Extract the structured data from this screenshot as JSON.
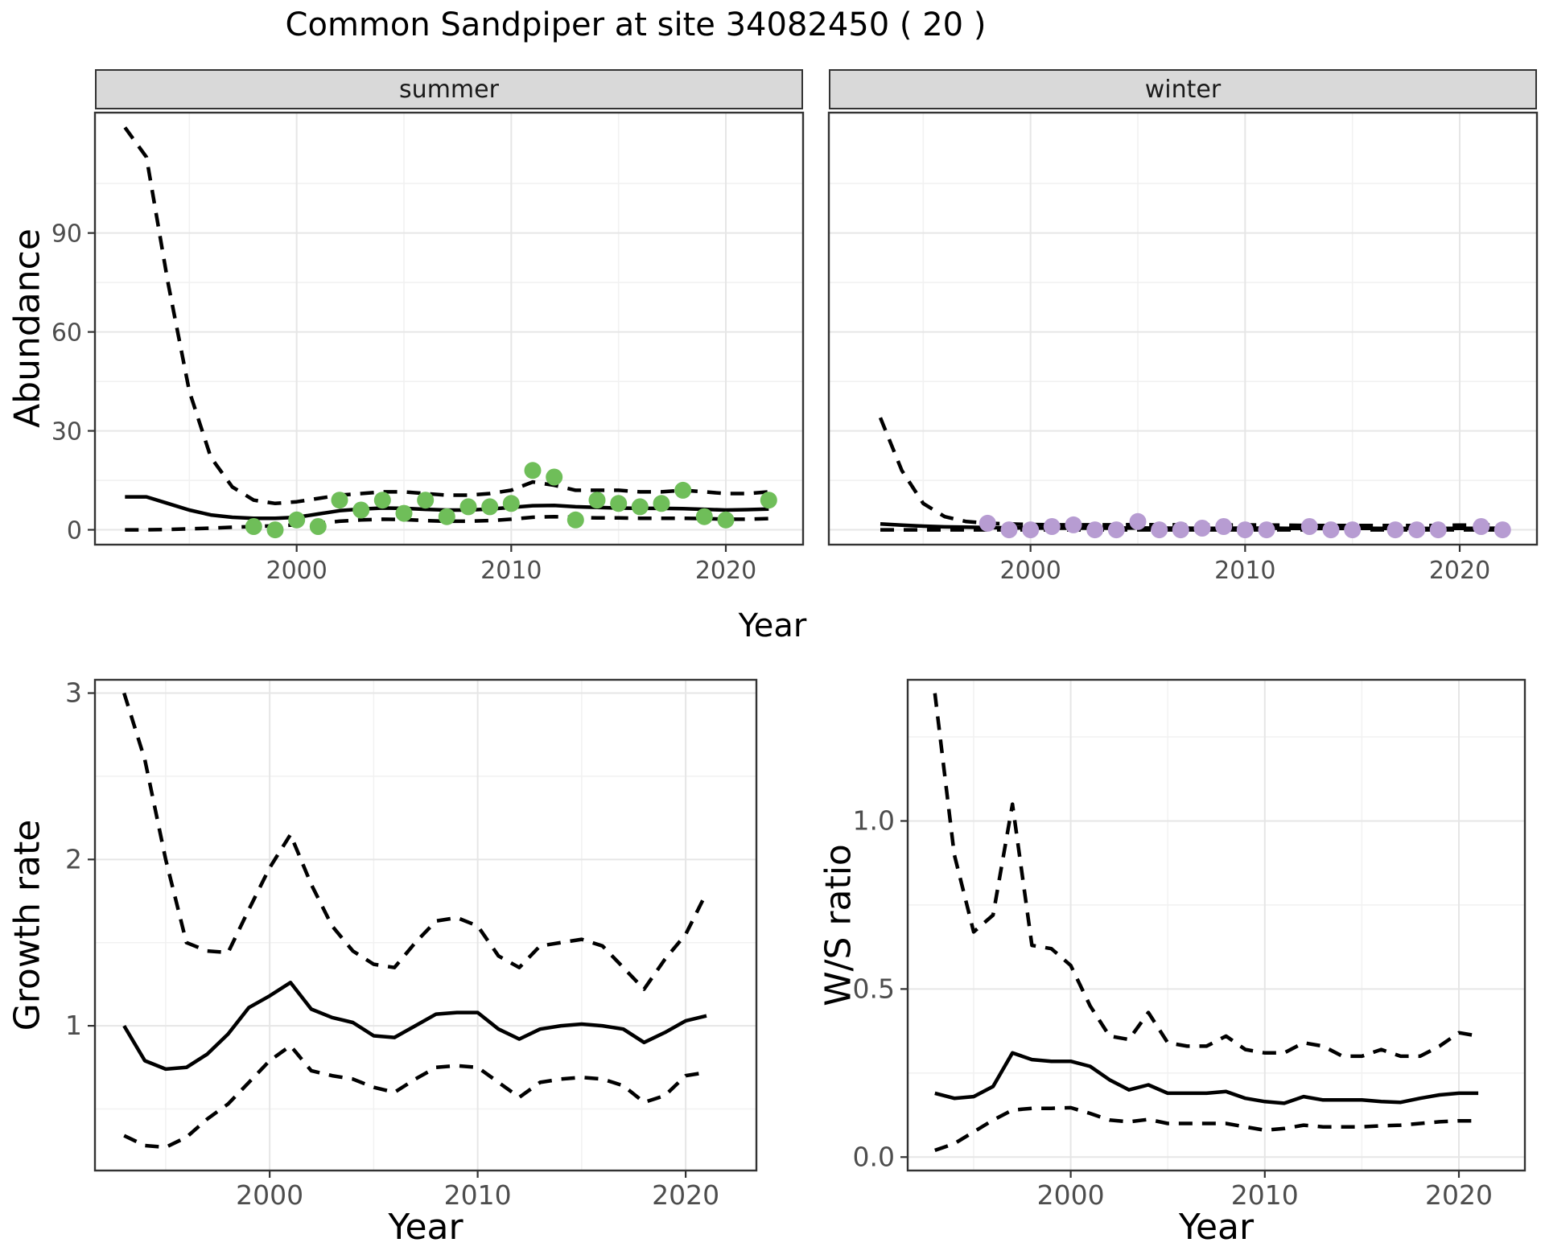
{
  "title": "Common Sandpiper at site 34082450 ( 20 )",
  "axis_titles": {
    "x": "Year",
    "y_abundance": "Abundance",
    "y_growth": "Growth rate",
    "y_ws": "W/S ratio"
  },
  "colors": {
    "summer_point": "#6FBE59",
    "winter_point": "#B79CD2",
    "strip_bg": "#D9D9D9",
    "panel_border": "#333333",
    "grid_major": "#E6E6E6",
    "grid_minor": "#F1F1F1",
    "line": "#000000",
    "tick_text": "#4D4D4D",
    "title_text": "#000000"
  },
  "chart_data": [
    {
      "id": "abundance-summer",
      "type": "line+scatter",
      "facet_label": "summer",
      "ylabel": "Abundance",
      "xlabel": "Year",
      "xlim": [
        1990.6,
        2023.6
      ],
      "ylim": [
        -4.5,
        126.5
      ],
      "xticks": {
        "values": [
          2000,
          2010,
          2020
        ],
        "labels": [
          "2000",
          "2010",
          "2020"
        ]
      },
      "yticks": {
        "values": [
          0,
          30,
          60,
          90
        ],
        "labels": [
          "0",
          "30",
          "60",
          "90"
        ]
      },
      "xminor": [
        1995,
        2005,
        2015
      ],
      "yminor": [
        15,
        45,
        75,
        105
      ],
      "show_y_labels": true,
      "lines": [
        {
          "name": "upper_95ci",
          "dash": true,
          "x": [
            1992,
            1993,
            1994,
            1995,
            1996,
            1997,
            1998,
            1999,
            2000,
            2001,
            2002,
            2003,
            2004,
            2005,
            2006,
            2007,
            2008,
            2009,
            2010,
            2011,
            2012,
            2013,
            2014,
            2015,
            2016,
            2017,
            2018,
            2019,
            2020,
            2021,
            2022
          ],
          "y": [
            122,
            113,
            75,
            42,
            22,
            13,
            9,
            8,
            8.5,
            9.5,
            10.5,
            11,
            11.5,
            11.5,
            11,
            10.5,
            10.5,
            11,
            12,
            14.5,
            13.5,
            12,
            12,
            12,
            11.5,
            11.5,
            12,
            11.5,
            11,
            11,
            11.5
          ]
        },
        {
          "name": "median",
          "dash": false,
          "x": [
            1992,
            1993,
            1994,
            1995,
            1996,
            1997,
            1998,
            1999,
            2000,
            2001,
            2002,
            2003,
            2004,
            2005,
            2006,
            2007,
            2008,
            2009,
            2010,
            2011,
            2012,
            2013,
            2014,
            2015,
            2016,
            2017,
            2018,
            2019,
            2020,
            2021,
            2022
          ],
          "y": [
            10,
            10,
            8,
            6,
            4.5,
            3.8,
            3.5,
            3.5,
            3.8,
            4.8,
            5.8,
            6.3,
            6.6,
            6.5,
            6.2,
            6,
            6,
            6.3,
            6.8,
            7.3,
            7.4,
            7,
            6.8,
            6.6,
            6.5,
            6.5,
            6.4,
            6.2,
            6,
            6.1,
            6.3
          ]
        },
        {
          "name": "lower_95ci",
          "dash": true,
          "x": [
            1992,
            1993,
            1994,
            1995,
            1996,
            1997,
            1998,
            1999,
            2000,
            2001,
            2002,
            2003,
            2004,
            2005,
            2006,
            2007,
            2008,
            2009,
            2010,
            2011,
            2012,
            2013,
            2014,
            2015,
            2016,
            2017,
            2018,
            2019,
            2020,
            2021,
            2022
          ],
          "y": [
            0,
            0,
            0.1,
            0.3,
            0.5,
            0.8,
            1,
            1.2,
            1.5,
            2,
            2.6,
            3,
            3.2,
            3.1,
            2.8,
            2.6,
            2.6,
            2.8,
            3.2,
            3.8,
            4,
            3.8,
            3.6,
            3.6,
            3.5,
            3.5,
            3.5,
            3.4,
            3.2,
            3.2,
            3.4
          ]
        }
      ],
      "points": {
        "color_key": "summer_point",
        "x": [
          1998,
          1999,
          2000,
          2001,
          2002,
          2003,
          2004,
          2005,
          2006,
          2007,
          2008,
          2009,
          2010,
          2011,
          2012,
          2013,
          2014,
          2015,
          2016,
          2017,
          2018,
          2019,
          2020,
          2022
        ],
        "y": [
          1,
          0,
          3,
          1,
          9,
          6,
          9,
          5,
          9,
          4,
          7,
          7,
          8,
          18,
          16,
          3,
          9,
          8,
          7,
          8,
          12,
          4,
          3,
          9
        ]
      }
    },
    {
      "id": "abundance-winter",
      "type": "line+scatter",
      "facet_label": "winter",
      "ylabel": "Abundance",
      "xlabel": "Year",
      "xlim": [
        1990.6,
        2023.6
      ],
      "ylim": [
        -4.5,
        126.5
      ],
      "xticks": {
        "values": [
          2000,
          2010,
          2020
        ],
        "labels": [
          "2000",
          "2010",
          "2020"
        ]
      },
      "yticks": {
        "values": [
          0,
          30,
          60,
          90
        ],
        "labels": [
          "0",
          "30",
          "60",
          "90"
        ]
      },
      "xminor": [
        1995,
        2005,
        2015
      ],
      "yminor": [
        15,
        45,
        75,
        105
      ],
      "show_y_labels": false,
      "lines": [
        {
          "name": "upper_95ci",
          "dash": true,
          "x": [
            1993,
            1994,
            1995,
            1996,
            1997,
            1998,
            1999,
            2000,
            2001,
            2002,
            2003,
            2004,
            2005,
            2006,
            2007,
            2008,
            2009,
            2010,
            2011,
            2012,
            2013,
            2014,
            2015,
            2016,
            2017,
            2018,
            2019,
            2020,
            2021,
            2022
          ],
          "y": [
            34,
            18,
            8,
            4,
            2.5,
            2,
            1.8,
            1.6,
            1.5,
            1.5,
            1.5,
            1.5,
            1.6,
            1.5,
            1.5,
            1.4,
            1.4,
            1.5,
            1.4,
            1.4,
            1.3,
            1.3,
            1.3,
            1.3,
            1.3,
            1.3,
            1.3,
            1.4,
            1.4,
            1.5
          ]
        },
        {
          "name": "median",
          "dash": false,
          "x": [
            1993,
            1994,
            1995,
            1996,
            1997,
            1998,
            1999,
            2000,
            2001,
            2002,
            2003,
            2004,
            2005,
            2006,
            2007,
            2008,
            2009,
            2010,
            2011,
            2012,
            2013,
            2014,
            2015,
            2016,
            2017,
            2018,
            2019,
            2020,
            2021,
            2022
          ],
          "y": [
            1.8,
            1.4,
            1.1,
            0.9,
            0.8,
            0.7,
            0.6,
            0.55,
            0.5,
            0.5,
            0.5,
            0.5,
            0.55,
            0.5,
            0.5,
            0.45,
            0.45,
            0.5,
            0.5,
            0.45,
            0.4,
            0.4,
            0.45,
            0.45,
            0.4,
            0.4,
            0.4,
            0.45,
            0.45,
            0.5
          ]
        },
        {
          "name": "lower_95ci",
          "dash": true,
          "x": [
            1993,
            1994,
            1995,
            1996,
            1997,
            1998,
            1999,
            2000,
            2001,
            2002,
            2003,
            2004,
            2005,
            2006,
            2007,
            2008,
            2009,
            2010,
            2011,
            2012,
            2013,
            2014,
            2015,
            2016,
            2017,
            2018,
            2019,
            2020,
            2021,
            2022
          ],
          "y": [
            0,
            0,
            0,
            0,
            0,
            0,
            0,
            0,
            0,
            0,
            0,
            0,
            0,
            0,
            0,
            0,
            0,
            0,
            0,
            0,
            0,
            0,
            0,
            0,
            0,
            0,
            0,
            0,
            0,
            0
          ]
        }
      ],
      "points": {
        "color_key": "winter_point",
        "x": [
          1998,
          1999,
          2000,
          2001,
          2002,
          2003,
          2004,
          2005,
          2006,
          2007,
          2008,
          2009,
          2010,
          2011,
          2013,
          2014,
          2015,
          2017,
          2018,
          2019,
          2021,
          2022
        ],
        "y": [
          2,
          0,
          0,
          1,
          1.5,
          0,
          0,
          2.5,
          0,
          0,
          0.5,
          1,
          0,
          0,
          1,
          0,
          0,
          0,
          0,
          0,
          1,
          0
        ]
      }
    },
    {
      "id": "growth-rate",
      "type": "line",
      "facet_label": "",
      "ylabel": "Growth rate",
      "xlabel": "Year",
      "xlim": [
        1991.6,
        2023.4
      ],
      "ylim": [
        0.13,
        3.08
      ],
      "xticks": {
        "values": [
          2000,
          2010,
          2020
        ],
        "labels": [
          "2000",
          "2010",
          "2020"
        ]
      },
      "yticks": {
        "values": [
          1,
          2,
          3
        ],
        "labels": [
          "1",
          "2",
          "3"
        ]
      },
      "xminor": [
        1995,
        2005,
        2015
      ],
      "yminor": [
        0.5,
        1.5,
        2.5
      ],
      "show_y_labels": true,
      "lines": [
        {
          "name": "upper_95ci",
          "dash": true,
          "x": [
            1993,
            1994,
            1995,
            1996,
            1997,
            1998,
            1999,
            2000,
            2001,
            2002,
            2003,
            2004,
            2005,
            2006,
            2007,
            2008,
            2009,
            2010,
            2011,
            2012,
            2013,
            2014,
            2015,
            2016,
            2017,
            2018,
            2019,
            2020,
            2021
          ],
          "y": [
            3.0,
            2.6,
            2.0,
            1.5,
            1.45,
            1.44,
            1.7,
            1.95,
            2.15,
            1.85,
            1.6,
            1.45,
            1.37,
            1.35,
            1.5,
            1.63,
            1.65,
            1.6,
            1.42,
            1.35,
            1.48,
            1.5,
            1.52,
            1.48,
            1.35,
            1.22,
            1.4,
            1.55,
            1.8
          ]
        },
        {
          "name": "median",
          "dash": false,
          "x": [
            1993,
            1994,
            1995,
            1996,
            1997,
            1998,
            1999,
            2000,
            2001,
            2002,
            2003,
            2004,
            2005,
            2006,
            2007,
            2008,
            2009,
            2010,
            2011,
            2012,
            2013,
            2014,
            2015,
            2016,
            2017,
            2018,
            2019,
            2020,
            2021
          ],
          "y": [
            1.0,
            0.79,
            0.74,
            0.75,
            0.83,
            0.95,
            1.11,
            1.18,
            1.26,
            1.1,
            1.05,
            1.02,
            0.94,
            0.93,
            1.0,
            1.07,
            1.08,
            1.08,
            0.98,
            0.92,
            0.98,
            1.0,
            1.01,
            1.0,
            0.98,
            0.9,
            0.96,
            1.03,
            1.06
          ]
        },
        {
          "name": "lower_95ci",
          "dash": true,
          "x": [
            1993,
            1994,
            1995,
            1996,
            1997,
            1998,
            1999,
            2000,
            2001,
            2002,
            2003,
            2004,
            2005,
            2006,
            2007,
            2008,
            2009,
            2010,
            2011,
            2012,
            2013,
            2014,
            2015,
            2016,
            2017,
            2018,
            2019,
            2020,
            2021
          ],
          "y": [
            0.34,
            0.28,
            0.27,
            0.33,
            0.44,
            0.53,
            0.66,
            0.79,
            0.88,
            0.73,
            0.7,
            0.68,
            0.63,
            0.6,
            0.68,
            0.75,
            0.76,
            0.75,
            0.66,
            0.57,
            0.66,
            0.68,
            0.69,
            0.68,
            0.64,
            0.54,
            0.58,
            0.7,
            0.72
          ]
        }
      ],
      "points": null
    },
    {
      "id": "ws-ratio",
      "type": "line",
      "facet_label": "",
      "ylabel": "W/S ratio",
      "xlabel": "Year",
      "xlim": [
        1991.6,
        2023.4
      ],
      "ylim": [
        -0.04,
        1.42
      ],
      "xticks": {
        "values": [
          2000,
          2010,
          2020
        ],
        "labels": [
          "2000",
          "2010",
          "2020"
        ]
      },
      "yticks": {
        "values": [
          0,
          0.5,
          1
        ],
        "labels": [
          "0.0",
          "0.5",
          "1.0"
        ]
      },
      "xminor": [
        1995,
        2005,
        2015
      ],
      "yminor": [
        0.25,
        0.75,
        1.25
      ],
      "show_y_labels": true,
      "lines": [
        {
          "name": "upper_95ci",
          "dash": true,
          "x": [
            1993,
            1994,
            1995,
            1996,
            1997,
            1998,
            1999,
            2000,
            2001,
            2002,
            2003,
            2004,
            2005,
            2006,
            2007,
            2008,
            2009,
            2010,
            2011,
            2012,
            2013,
            2014,
            2015,
            2016,
            2017,
            2018,
            2019,
            2020,
            2021
          ],
          "y": [
            1.38,
            0.9,
            0.67,
            0.72,
            1.05,
            0.63,
            0.62,
            0.57,
            0.45,
            0.36,
            0.35,
            0.43,
            0.34,
            0.33,
            0.33,
            0.36,
            0.32,
            0.31,
            0.31,
            0.34,
            0.33,
            0.3,
            0.3,
            0.32,
            0.3,
            0.3,
            0.33,
            0.37,
            0.36
          ]
        },
        {
          "name": "median",
          "dash": false,
          "x": [
            1993,
            1994,
            1995,
            1996,
            1997,
            1998,
            1999,
            2000,
            2001,
            2002,
            2003,
            2004,
            2005,
            2006,
            2007,
            2008,
            2009,
            2010,
            2011,
            2012,
            2013,
            2014,
            2015,
            2016,
            2017,
            2018,
            2019,
            2020,
            2021
          ],
          "y": [
            0.19,
            0.175,
            0.18,
            0.21,
            0.31,
            0.29,
            0.285,
            0.285,
            0.27,
            0.23,
            0.2,
            0.215,
            0.19,
            0.19,
            0.19,
            0.195,
            0.175,
            0.165,
            0.16,
            0.18,
            0.17,
            0.17,
            0.17,
            0.165,
            0.163,
            0.175,
            0.185,
            0.19,
            0.19
          ]
        },
        {
          "name": "lower_95ci",
          "dash": true,
          "x": [
            1993,
            1994,
            1995,
            1996,
            1997,
            1998,
            1999,
            2000,
            2001,
            2002,
            2003,
            2004,
            2005,
            2006,
            2007,
            2008,
            2009,
            2010,
            2011,
            2012,
            2013,
            2014,
            2015,
            2016,
            2017,
            2018,
            2019,
            2020,
            2021
          ],
          "y": [
            0.02,
            0.04,
            0.075,
            0.11,
            0.14,
            0.145,
            0.145,
            0.147,
            0.13,
            0.11,
            0.105,
            0.112,
            0.1,
            0.1,
            0.1,
            0.1,
            0.09,
            0.08,
            0.085,
            0.095,
            0.09,
            0.09,
            0.09,
            0.093,
            0.095,
            0.1,
            0.105,
            0.108,
            0.108
          ]
        }
      ],
      "points": null
    }
  ]
}
